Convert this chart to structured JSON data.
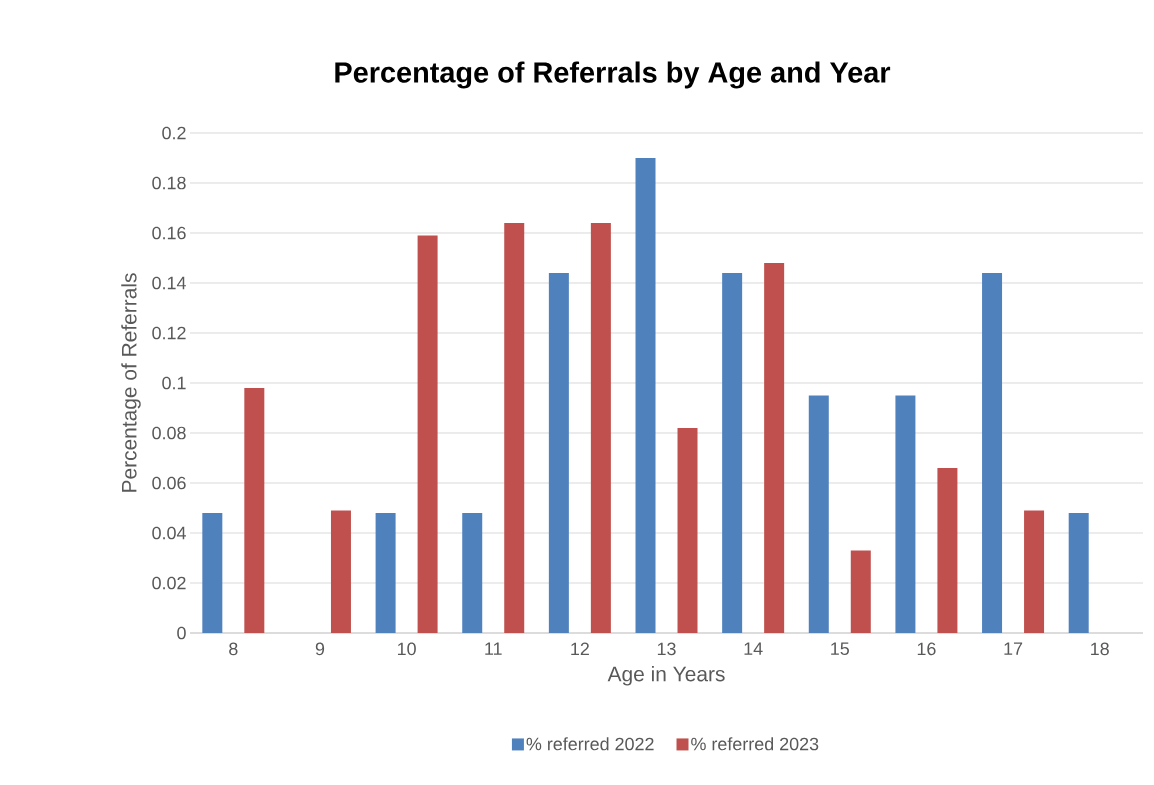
{
  "chart_data": {
    "type": "bar",
    "title": "Percentage of Referrals by Age and Year",
    "xlabel": "Age in Years",
    "ylabel": "Percentage of Referrals",
    "categories": [
      "8",
      "9",
      "10",
      "11",
      "12",
      "13",
      "14",
      "15",
      "16",
      "17",
      "18"
    ],
    "series": [
      {
        "name": "% referred 2022",
        "color": "#4f81bd",
        "values": [
          0.048,
          null,
          0.048,
          0.048,
          0.144,
          0.19,
          0.144,
          0.095,
          0.095,
          0.144,
          0.048
        ]
      },
      {
        "name": "% referred 2023",
        "color": "#c0504d",
        "values": [
          0.098,
          0.049,
          0.159,
          0.164,
          0.164,
          0.082,
          0.148,
          0.033,
          0.066,
          0.049,
          null
        ]
      }
    ],
    "ylim": [
      0,
      0.2
    ],
    "yticks": [
      0,
      0.02,
      0.04,
      0.06,
      0.08,
      0.1,
      0.12,
      0.14,
      0.16,
      0.18,
      0.2
    ],
    "grid": "y",
    "legend": "bottom"
  }
}
